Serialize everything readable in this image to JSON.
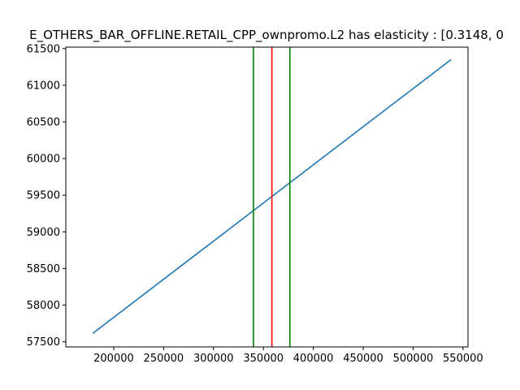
{
  "chart_data": {
    "type": "line",
    "title": "E_OTHERS_BAR_OFFLINE.RETAIL_CPP_ownpromo.L2 has elasticity : [0.3148, 0",
    "xlabel": "",
    "ylabel": "",
    "xlim": [
      152000,
      555000
    ],
    "ylim": [
      57430,
      61520
    ],
    "x_ticks": [
      200000,
      250000,
      300000,
      350000,
      400000,
      450000,
      500000,
      550000
    ],
    "x_tick_labels": [
      "200000",
      "250000",
      "300000",
      "350000",
      "400000",
      "450000",
      "500000",
      "550000"
    ],
    "y_ticks": [
      57500,
      58000,
      58500,
      59000,
      59500,
      60000,
      60500,
      61000,
      61500
    ],
    "y_tick_labels": [
      "57500",
      "58000",
      "58500",
      "59000",
      "59500",
      "60000",
      "60500",
      "61000",
      "61500"
    ],
    "grid": false,
    "series": [
      {
        "color": "#1f77b4",
        "x": [
          179000,
          538000
        ],
        "y": [
          57615,
          61350
        ]
      }
    ],
    "vlines": [
      {
        "x": 340000,
        "color": "#008000"
      },
      {
        "x": 358500,
        "color": "#ff0000"
      },
      {
        "x": 376500,
        "color": "#008000"
      }
    ]
  }
}
